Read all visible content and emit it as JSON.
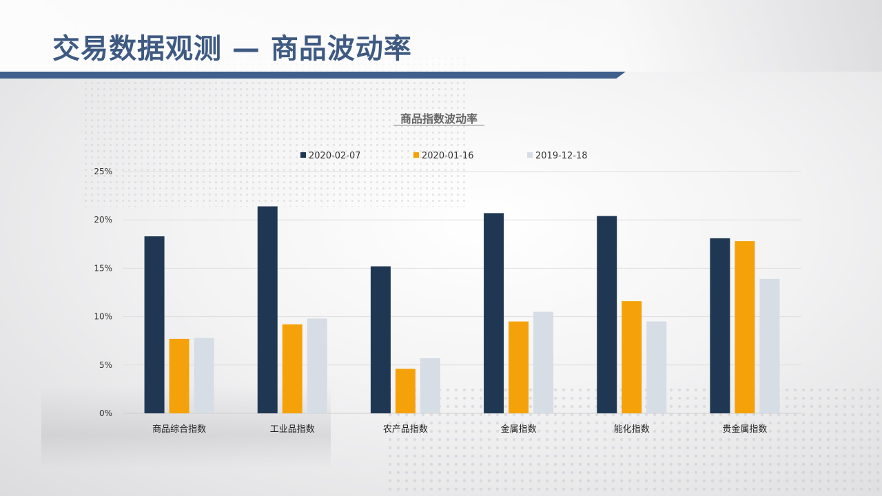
{
  "page": {
    "title": "交易数据观测 — 商品波动率"
  },
  "chart_data": {
    "type": "bar",
    "title": "商品指数波动率",
    "xlabel": "",
    "ylabel": "",
    "ylim": [
      0,
      25
    ],
    "yticks": [
      "0%",
      "5%",
      "10%",
      "15%",
      "20%",
      "25%"
    ],
    "ytick_values": [
      0,
      5,
      10,
      15,
      20,
      25
    ],
    "grid": true,
    "legend": "top",
    "categories": [
      "商品综合指数",
      "工业品指数",
      "农产品指数",
      "金属指数",
      "能化指数",
      "贵金属指数"
    ],
    "series": [
      {
        "name": "2020-02-07",
        "color": "#1f3752",
        "values": [
          18.3,
          21.4,
          15.2,
          20.7,
          20.4,
          18.1
        ]
      },
      {
        "name": "2020-01-16",
        "color": "#f5a20a",
        "values": [
          7.7,
          9.2,
          4.6,
          9.5,
          11.6,
          17.8
        ]
      },
      {
        "name": "2019-12-18",
        "color": "#d6dde5",
        "values": [
          7.8,
          9.8,
          5.7,
          10.5,
          9.5,
          13.9
        ]
      }
    ]
  }
}
